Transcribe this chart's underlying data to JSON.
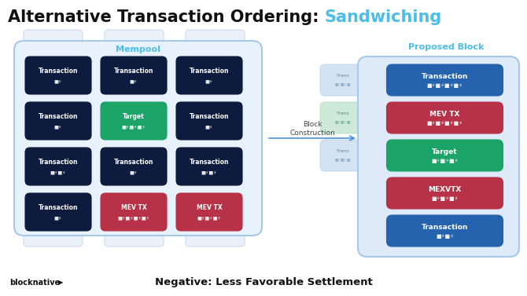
{
  "title_black": "Alternative Transaction Ordering: ",
  "title_cyan": "Sandwiching",
  "title_fontsize": 15,
  "bg_color": "#ffffff",
  "mempool_label": "Mempool",
  "mempool_label_color": "#4bbde8",
  "proposed_label": "Proposed Block",
  "proposed_label_color": "#4bbde8",
  "arrow_label": "Block\nConstruction",
  "arrow_color": "#4a90d9",
  "negative_text": "Negative: Less Favorable Settlement",
  "negative_fontsize": 9.5,
  "blocknative_text": "blocknative",
  "mempool_cells": [
    {
      "row": 0,
      "col": 0,
      "label": "Transaction",
      "sublabel": "■⚡",
      "color": "#0d1b3e",
      "text_color": "#ffffff"
    },
    {
      "row": 0,
      "col": 1,
      "label": "Transaction",
      "sublabel": "■⚡",
      "color": "#0d1b3e",
      "text_color": "#ffffff"
    },
    {
      "row": 0,
      "col": 2,
      "label": "Transaction",
      "sublabel": "■⚡",
      "color": "#0d1b3e",
      "text_color": "#ffffff"
    },
    {
      "row": 1,
      "col": 0,
      "label": "Transaction",
      "sublabel": "■⚡",
      "color": "#0d1b3e",
      "text_color": "#ffffff"
    },
    {
      "row": 1,
      "col": 1,
      "label": "Target",
      "sublabel": "■⚡■⚡■⚡",
      "color": "#1ba368",
      "text_color": "#ffffff"
    },
    {
      "row": 1,
      "col": 2,
      "label": "Transaction",
      "sublabel": "■⚡",
      "color": "#0d1b3e",
      "text_color": "#ffffff"
    },
    {
      "row": 2,
      "col": 0,
      "label": "Transaction",
      "sublabel": "■⚡■⚡",
      "color": "#0d1b3e",
      "text_color": "#ffffff"
    },
    {
      "row": 2,
      "col": 1,
      "label": "Transaction",
      "sublabel": "■⚡",
      "color": "#0d1b3e",
      "text_color": "#ffffff"
    },
    {
      "row": 2,
      "col": 2,
      "label": "Transaction",
      "sublabel": "■⚡■⚡",
      "color": "#0d1b3e",
      "text_color": "#ffffff"
    },
    {
      "row": 3,
      "col": 0,
      "label": "Transaction",
      "sublabel": "■⚡",
      "color": "#0d1b3e",
      "text_color": "#ffffff"
    },
    {
      "row": 3,
      "col": 1,
      "label": "MEV TX",
      "sublabel": "■⚡■⚡■⚡■⚡",
      "color": "#b83247",
      "text_color": "#ffffff"
    },
    {
      "row": 3,
      "col": 2,
      "label": "MEV TX",
      "sublabel": "■⚡■⚡■⚡",
      "color": "#b83247",
      "text_color": "#ffffff"
    }
  ],
  "block_cells": [
    {
      "label": "Transaction",
      "sublabel": "■⚡■⚡■⚡■⚡",
      "color": "#2563ae",
      "text_color": "#ffffff",
      "has_shadow": true,
      "shadow_color": "#b8d4ee"
    },
    {
      "label": "MEV TX",
      "sublabel": "■⚡■⚡■⚡■⚡",
      "color": "#b83247",
      "text_color": "#ffffff",
      "has_shadow": true,
      "shadow_color": "#b8dfc8"
    },
    {
      "label": "Target",
      "sublabel": "■⚡■⚡■⚡",
      "color": "#1ba368",
      "text_color": "#ffffff",
      "has_shadow": true,
      "shadow_color": "#b8d4ee"
    },
    {
      "label": "MEXVTX",
      "sublabel": "■⚡■⚡■⚡",
      "color": "#b83247",
      "text_color": "#ffffff",
      "has_shadow": false
    },
    {
      "label": "Transaction",
      "sublabel": "■⚡■⚡",
      "color": "#2563ae",
      "text_color": "#ffffff",
      "has_shadow": false
    }
  ]
}
